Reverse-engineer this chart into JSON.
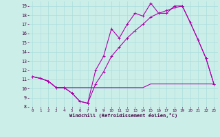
{
  "xlabel": "Windchill (Refroidissement éolien,°C)",
  "bg_color": "#cceee8",
  "grid_color": "#aadddd",
  "line_color": "#aa00aa",
  "xlim": [
    -0.5,
    23.5
  ],
  "ylim": [
    8,
    19.5
  ],
  "xticks": [
    0,
    1,
    2,
    3,
    4,
    5,
    6,
    7,
    8,
    9,
    10,
    11,
    12,
    13,
    14,
    15,
    16,
    17,
    18,
    19,
    20,
    21,
    22,
    23
  ],
  "yticks": [
    8,
    9,
    10,
    11,
    12,
    13,
    14,
    15,
    16,
    17,
    18,
    19
  ],
  "line1_x": [
    0,
    1,
    2,
    3,
    4,
    5,
    6,
    7,
    8,
    9,
    10,
    11,
    12,
    13,
    14,
    15,
    16,
    17,
    18,
    19,
    20,
    21,
    22,
    23
  ],
  "line1_y": [
    11.3,
    11.1,
    10.8,
    10.1,
    10.1,
    9.5,
    8.6,
    8.4,
    12.0,
    13.5,
    16.5,
    15.5,
    17.0,
    18.2,
    17.9,
    19.3,
    18.2,
    18.2,
    19.0,
    19.0,
    17.2,
    15.3,
    13.3,
    10.5
  ],
  "line2_x": [
    0,
    1,
    2,
    3,
    4,
    5,
    6,
    7,
    8,
    9,
    10,
    11,
    12,
    13,
    14,
    15,
    16,
    17,
    18,
    19,
    20,
    21,
    22,
    23
  ],
  "line2_y": [
    11.3,
    11.1,
    10.8,
    10.1,
    10.1,
    10.1,
    10.1,
    10.1,
    10.1,
    10.1,
    10.1,
    10.1,
    10.1,
    10.1,
    10.1,
    10.5,
    10.5,
    10.5,
    10.5,
    10.5,
    10.5,
    10.5,
    10.5,
    10.5
  ],
  "line3_x": [
    0,
    1,
    2,
    3,
    4,
    5,
    6,
    7,
    8,
    9,
    10,
    11,
    12,
    13,
    14,
    15,
    16,
    17,
    18,
    19,
    20,
    21,
    22,
    23
  ],
  "line3_y": [
    11.3,
    11.1,
    10.8,
    10.1,
    10.1,
    9.5,
    8.6,
    8.4,
    10.5,
    11.8,
    13.5,
    14.5,
    15.5,
    16.3,
    17.0,
    17.8,
    18.2,
    18.5,
    18.8,
    19.0,
    17.2,
    15.3,
    13.3,
    10.5
  ]
}
